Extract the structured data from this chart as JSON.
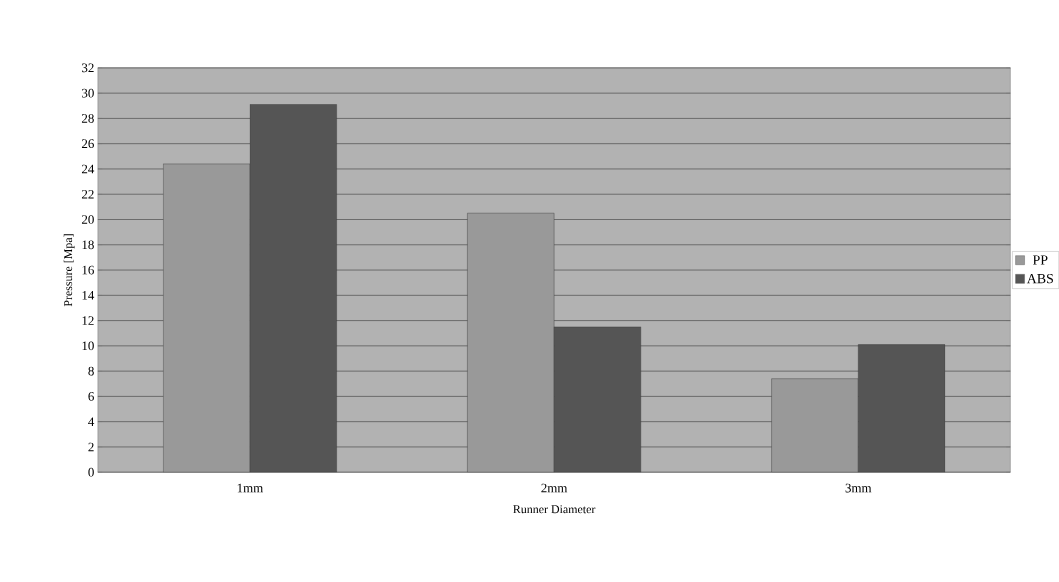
{
  "chart_data": {
    "type": "bar",
    "xlabel": "Runner Diameter",
    "ylabel": "Pressure [Mpa]",
    "categories": [
      "1mm",
      "2mm",
      "3mm"
    ],
    "series": [
      {
        "name": "PP",
        "color": "#999999",
        "values": [
          24.4,
          20.5,
          7.4
        ]
      },
      {
        "name": "ABS",
        "color": "#555555",
        "values": [
          29.1,
          11.5,
          10.1
        ]
      }
    ],
    "ylim": [
      0,
      32
    ],
    "yticks": [
      0,
      2,
      4,
      6,
      8,
      10,
      12,
      14,
      16,
      18,
      20,
      22,
      24,
      26,
      28,
      30,
      32
    ],
    "grid": "y",
    "legend": "right"
  }
}
